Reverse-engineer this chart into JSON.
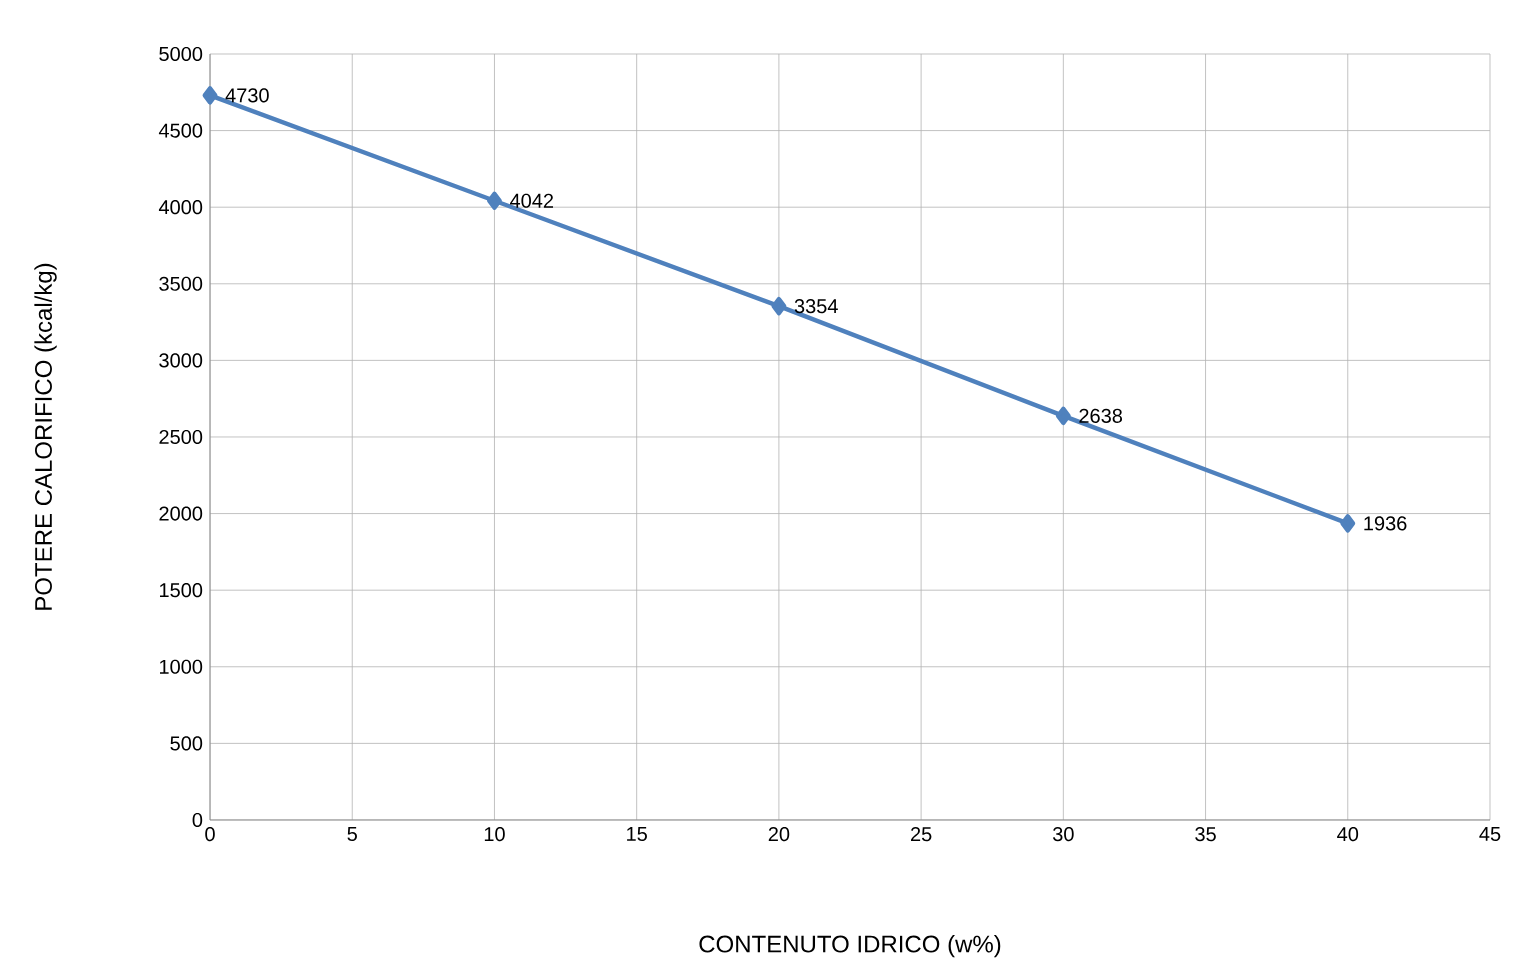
{
  "chart_data": {
    "type": "line",
    "xlabel": "CONTENUTO IDRICO (w%)",
    "ylabel": "POTERE CALORIFICO (kcal/kg)",
    "x": [
      0,
      10,
      20,
      30,
      40
    ],
    "series": [
      {
        "color": "#4f81bd",
        "values": [
          4730,
          4042,
          3354,
          2638,
          1936
        ]
      }
    ],
    "xlim": [
      0,
      45
    ],
    "ylim": [
      0,
      5000
    ],
    "xticks": [
      0,
      5,
      10,
      15,
      20,
      25,
      30,
      35,
      40,
      45
    ],
    "yticks": [
      0,
      500,
      1000,
      1500,
      2000,
      2500,
      3000,
      3500,
      4000,
      4500,
      5000
    ],
    "grid": true,
    "marker": "diamond",
    "line_style": "solid",
    "data_labels": true
  }
}
